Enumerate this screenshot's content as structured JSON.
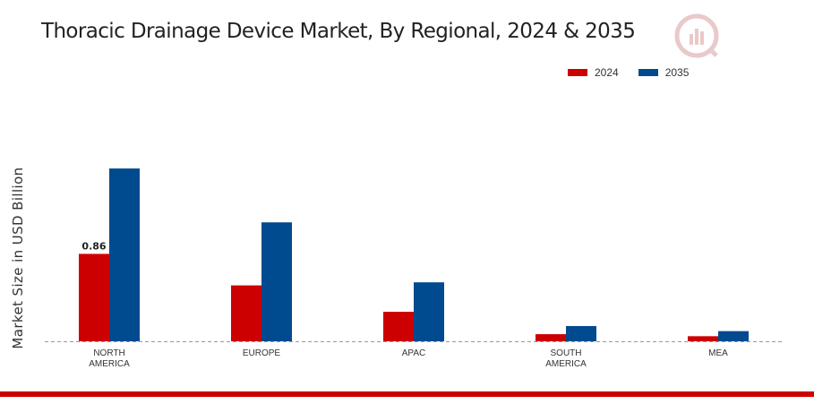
{
  "chart_data": {
    "type": "bar",
    "title": "Thoracic Drainage Device Market, By Regional, 2024 & 2035",
    "xlabel": "",
    "ylabel": "Market Size in USD Billion",
    "categories": [
      [
        "NORTH",
        "AMERICA"
      ],
      [
        "EUROPE"
      ],
      [
        "APAC"
      ],
      [
        "SOUTH",
        "AMERICA"
      ],
      [
        "MEA"
      ]
    ],
    "series": [
      {
        "name": "2024",
        "color": "#cc0000",
        "values": [
          0.86,
          0.55,
          0.29,
          0.07,
          0.05
        ]
      },
      {
        "name": "2035",
        "color": "#004a8f",
        "values": [
          1.7,
          1.17,
          0.58,
          0.15,
          0.1
        ]
      }
    ],
    "data_labels": [
      {
        "series": 0,
        "index": 0,
        "text": "0.86"
      }
    ],
    "ylim": [
      0,
      2.3
    ],
    "grid": false,
    "legend": "top-right"
  }
}
